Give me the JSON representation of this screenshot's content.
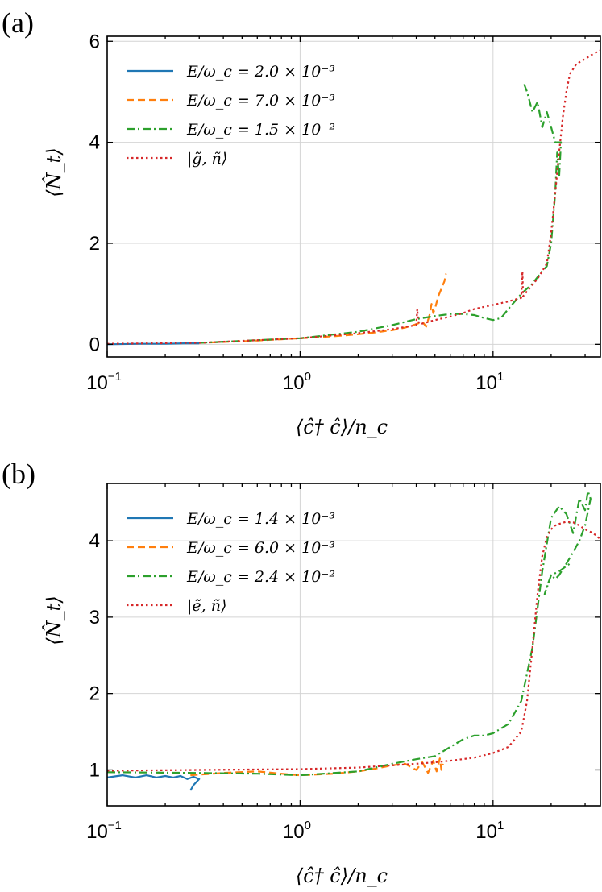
{
  "chart_data": [
    {
      "type": "line",
      "panel_label": "(a)",
      "xlabel": "⟨ĉ† ĉ⟩/n_c",
      "ylabel": "⟨N̂_t⟩",
      "xscale": "log",
      "xlim": [
        0.1,
        36
      ],
      "ylim": [
        -0.25,
        6.1
      ],
      "xticks": [
        {
          "label_base": "10",
          "label_exp": "−1",
          "value": 0.1
        },
        {
          "label_base": "10",
          "label_exp": "0",
          "value": 1
        },
        {
          "label_base": "10",
          "label_exp": "1",
          "value": 10
        }
      ],
      "yticks": [
        0,
        2,
        4,
        6
      ],
      "grid": true,
      "legend_position": "upper-left",
      "series": [
        {
          "name": "E/ω_c = 2.0 × 10⁻³",
          "color": "#1f77b4",
          "dash": "solid",
          "x": [
            0.1,
            0.15,
            0.2,
            0.25,
            0.3
          ],
          "y": [
            0.0,
            0.01,
            0.01,
            0.02,
            0.02
          ]
        },
        {
          "name": "E/ω_c = 7.0 × 10⁻³",
          "color": "#ff7f0e",
          "dash": "dashed",
          "x": [
            0.3,
            0.5,
            0.8,
            1.0,
            1.5,
            2.0,
            2.5,
            3.0,
            3.5,
            4.0,
            4.3,
            4.5,
            4.7,
            4.8,
            4.9,
            5.0,
            5.2,
            5.4,
            5.6,
            5.7
          ],
          "y": [
            0.03,
            0.06,
            0.1,
            0.12,
            0.16,
            0.2,
            0.24,
            0.28,
            0.33,
            0.4,
            0.45,
            0.35,
            0.6,
            0.8,
            0.62,
            0.7,
            0.95,
            1.1,
            1.25,
            1.4
          ]
        },
        {
          "name": "E/ω_c = 1.5 × 10⁻²",
          "color": "#2ca02c",
          "dash": "dashdot",
          "x": [
            0.3,
            1.0,
            2.0,
            3.0,
            4.0,
            5.0,
            6.0,
            7.0,
            8.0,
            9.0,
            10.0,
            11.0,
            12.0,
            14.0,
            16.0,
            18.0,
            19.0,
            20.0,
            21.0,
            21.5,
            22.0,
            22.5,
            21.0,
            20.0,
            19.0,
            18.0,
            17.0,
            16.0,
            15.0,
            14.5
          ],
          "y": [
            0.03,
            0.12,
            0.25,
            0.38,
            0.5,
            0.56,
            0.6,
            0.6,
            0.58,
            0.52,
            0.48,
            0.52,
            0.7,
            1.0,
            1.2,
            1.45,
            1.55,
            2.0,
            3.0,
            3.8,
            3.3,
            4.0,
            4.0,
            4.3,
            4.6,
            4.3,
            4.8,
            4.6,
            5.0,
            5.15
          ]
        },
        {
          "name": "|g̃, ñ⟩",
          "color": "#d62728",
          "dash": "dotted",
          "x": [
            0.1,
            0.3,
            1.0,
            2.0,
            3.0,
            4.0,
            4.05,
            4.1,
            4.2,
            5.0,
            6.0,
            7.0,
            8.0,
            10.0,
            12.0,
            14.0,
            14.2,
            14.3,
            15.0,
            17.0,
            19.0,
            20.0,
            21.0,
            22.0,
            23.0,
            24.0,
            25.0,
            27.0,
            30.0,
            33.0,
            36.0
          ],
          "y": [
            0.01,
            0.03,
            0.12,
            0.22,
            0.3,
            0.38,
            0.7,
            0.45,
            0.4,
            0.48,
            0.55,
            0.62,
            0.7,
            0.78,
            0.85,
            0.92,
            1.45,
            0.95,
            1.05,
            1.3,
            1.6,
            2.2,
            3.0,
            3.8,
            4.5,
            5.0,
            5.35,
            5.55,
            5.65,
            5.75,
            5.82
          ]
        }
      ]
    },
    {
      "type": "line",
      "panel_label": "(b)",
      "xlabel": "⟨ĉ† ĉ⟩/n_c",
      "ylabel": "⟨N̂_t⟩",
      "xscale": "log",
      "xlim": [
        0.1,
        36
      ],
      "ylim": [
        0.53,
        4.75
      ],
      "xticks": [
        {
          "label_base": "10",
          "label_exp": "−1",
          "value": 0.1
        },
        {
          "label_base": "10",
          "label_exp": "0",
          "value": 1
        },
        {
          "label_base": "10",
          "label_exp": "1",
          "value": 10
        }
      ],
      "yticks": [
        1,
        2,
        3,
        4
      ],
      "grid": true,
      "legend_position": "upper-left",
      "series": [
        {
          "name": "E/ω_c = 1.4 × 10⁻³",
          "color": "#1f77b4",
          "dash": "solid",
          "x": [
            0.1,
            0.12,
            0.14,
            0.16,
            0.18,
            0.2,
            0.22,
            0.24,
            0.26,
            0.28,
            0.3,
            0.28,
            0.27
          ],
          "y": [
            0.9,
            0.93,
            0.9,
            0.93,
            0.9,
            0.92,
            0.9,
            0.92,
            0.88,
            0.91,
            0.88,
            0.8,
            0.73
          ]
        },
        {
          "name": "E/ω_c = 6.0 × 10⁻³",
          "color": "#ff7f0e",
          "dash": "dashed",
          "x": [
            0.27,
            0.4,
            0.6,
            0.8,
            1.0,
            1.5,
            2.0,
            2.5,
            3.0,
            3.5,
            4.0,
            4.3,
            4.6,
            4.9,
            5.1,
            5.3,
            5.4,
            5.5
          ],
          "y": [
            0.93,
            0.96,
            0.98,
            0.95,
            0.93,
            0.95,
            0.98,
            1.02,
            1.06,
            1.08,
            1.0,
            1.1,
            0.96,
            1.12,
            0.98,
            1.15,
            1.0,
            1.08
          ]
        },
        {
          "name": "E/ω_c = 2.4 × 10⁻²",
          "color": "#2ca02c",
          "dash": "dashdot",
          "x": [
            0.1,
            0.3,
            0.6,
            1.0,
            2.0,
            3.0,
            4.0,
            5.0,
            6.0,
            7.0,
            8.0,
            9.0,
            10.0,
            12.0,
            14.0,
            16.0,
            18.0,
            20.0,
            22.0,
            24.0,
            26.0,
            28.0,
            30.0,
            31.0,
            32.0,
            30.0,
            28.0,
            26.0,
            24.0,
            22.0,
            21.0,
            20.0,
            19.0,
            18.5,
            20.0,
            22.0,
            25.0
          ],
          "y": [
            0.97,
            0.96,
            0.95,
            0.93,
            0.98,
            1.08,
            1.14,
            1.18,
            1.3,
            1.4,
            1.45,
            1.45,
            1.48,
            1.6,
            1.9,
            2.6,
            3.6,
            4.3,
            4.45,
            4.35,
            4.1,
            4.55,
            4.4,
            4.65,
            4.55,
            4.2,
            4.0,
            3.85,
            3.7,
            3.55,
            3.5,
            3.55,
            3.4,
            3.3,
            3.55,
            3.6,
            3.7
          ]
        },
        {
          "name": "|ẽ, ñ⟩",
          "color": "#d62728",
          "dash": "dotted",
          "x": [
            0.1,
            0.3,
            1.0,
            2.0,
            3.0,
            4.0,
            5.0,
            6.0,
            8.0,
            10.0,
            12.0,
            14.0,
            15.0,
            16.0,
            17.0,
            18.0,
            19.0,
            20.0,
            21.0,
            22.0,
            24.0,
            26.0,
            28.0,
            30.0,
            33.0,
            36.0
          ],
          "y": [
            0.99,
            1.0,
            1.01,
            1.03,
            1.06,
            1.08,
            1.1,
            1.12,
            1.16,
            1.22,
            1.3,
            1.5,
            1.9,
            2.6,
            3.3,
            3.8,
            4.05,
            4.15,
            4.2,
            4.22,
            4.25,
            4.24,
            4.2,
            4.15,
            4.1,
            4.02
          ]
        }
      ]
    }
  ]
}
